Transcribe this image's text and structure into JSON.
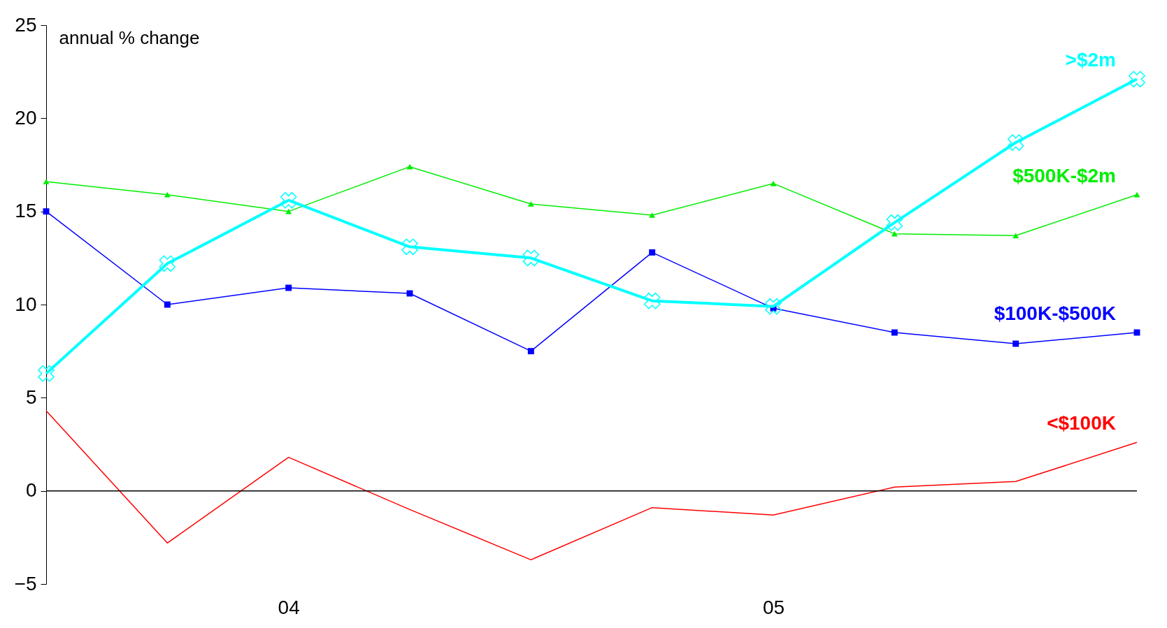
{
  "chart_data": {
    "type": "line",
    "ylabel": "annual % change",
    "categories": [
      null,
      null,
      "04",
      null,
      null,
      null,
      "05",
      null,
      null,
      null
    ],
    "ylim": [
      -5,
      25
    ],
    "yticks": [
      -5,
      0,
      5,
      10,
      15,
      20,
      25
    ],
    "grid": false,
    "ref_lines": [
      {
        "axis": "y",
        "value": 0,
        "color": "#000000"
      }
    ],
    "series": [
      {
        "name": "<$100K",
        "color": "#ff0000",
        "marker": "none",
        "values": [
          4.3,
          -2.8,
          1.8,
          -1.0,
          -3.7,
          -0.9,
          -1.3,
          0.2,
          0.5,
          2.6
        ]
      },
      {
        "name": "$100K-$500K",
        "color": "#0000ff",
        "marker": "square",
        "values": [
          15.0,
          10.0,
          10.9,
          10.6,
          7.5,
          12.8,
          9.8,
          8.5,
          7.9,
          8.5
        ]
      },
      {
        "name": "$500K-$2m",
        "color": "#00ee00",
        "marker": "triangle",
        "values": [
          16.6,
          15.9,
          15.0,
          17.4,
          15.4,
          14.8,
          16.5,
          13.8,
          13.7,
          15.9
        ]
      },
      {
        "name": ">$2m",
        "color": "#00ffff",
        "marker": "cross",
        "values": [
          6.3,
          12.2,
          15.6,
          13.1,
          12.5,
          10.2,
          9.9,
          14.4,
          18.7,
          22.1
        ]
      }
    ]
  }
}
